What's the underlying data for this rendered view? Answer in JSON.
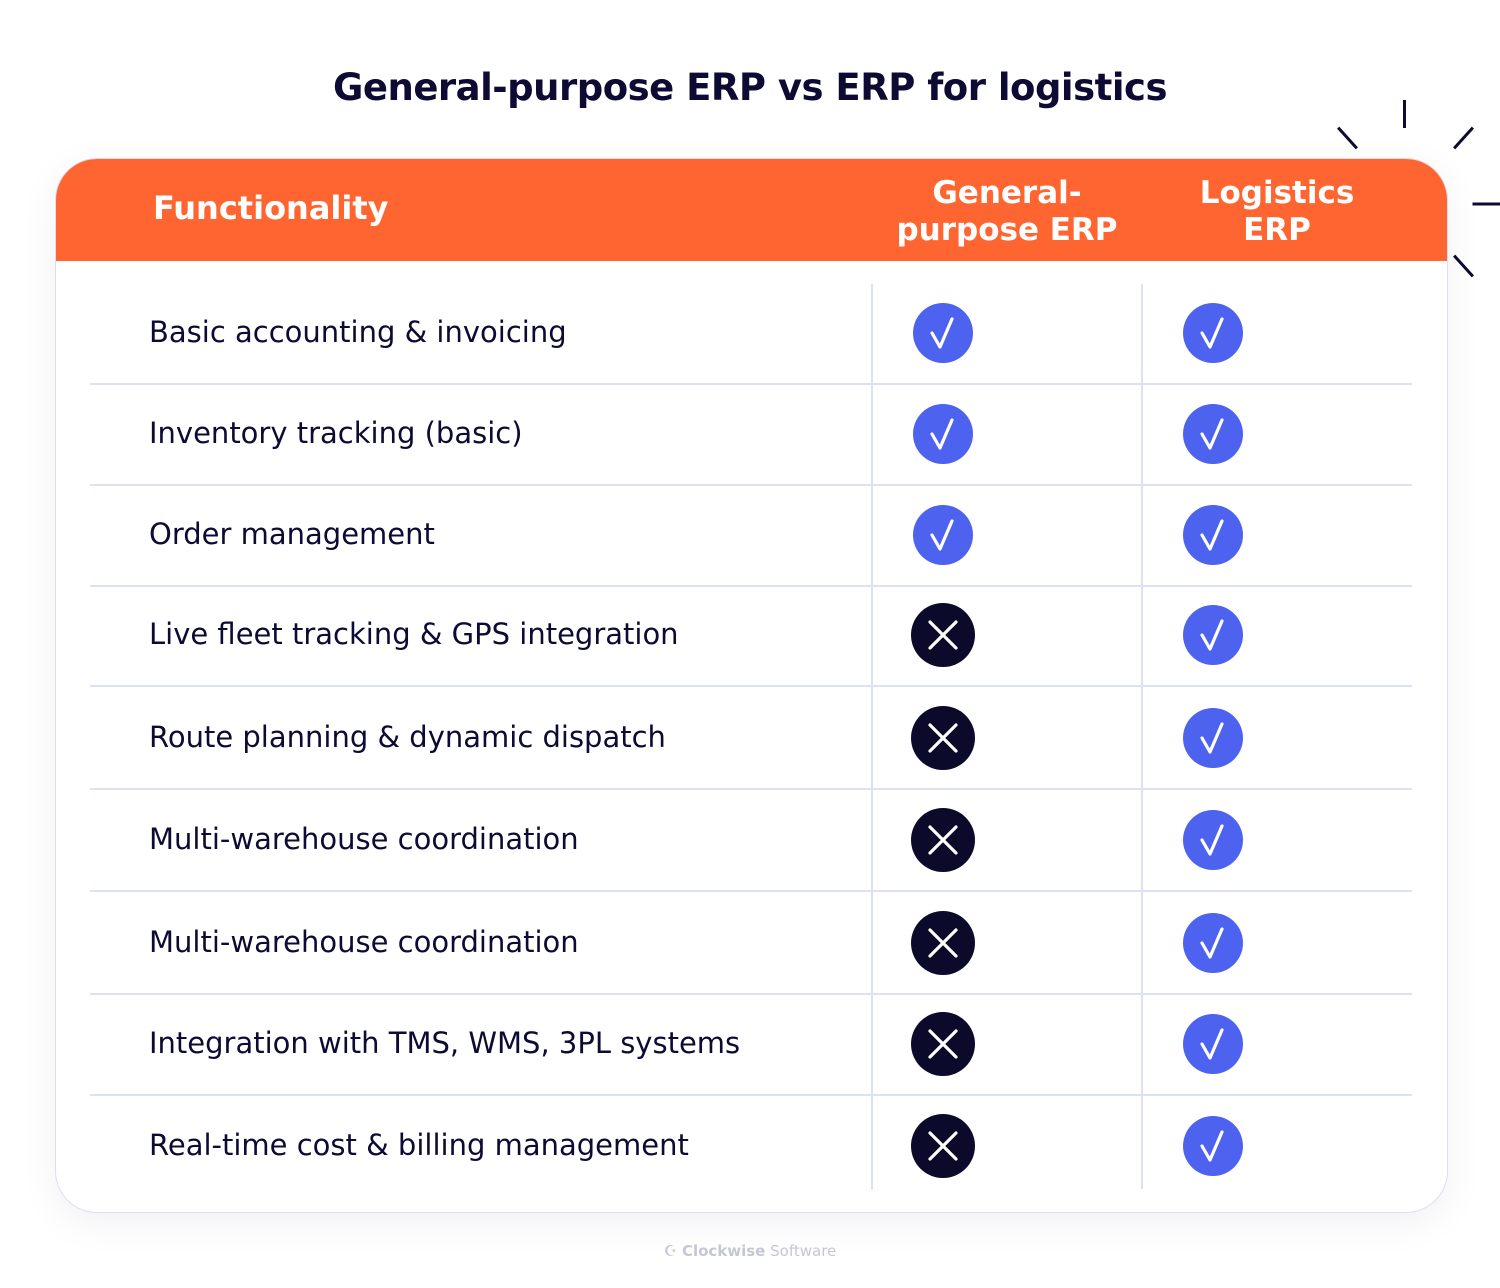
{
  "title": "General-purpose ERP vs ERP for logistics",
  "colors": {
    "header": "#ff6531",
    "check": "#4d63ef",
    "cross": "#0b0a2b",
    "text": "#0d0a33",
    "divider": "#dde1f5"
  },
  "header": {
    "functionality": "Functionality",
    "general_line1": "General-",
    "general_line2": "purpose ERP",
    "logistics_line1": "Logistics",
    "logistics_line2": "ERP"
  },
  "rows": [
    {
      "label": "Basic accounting & invoicing",
      "general": "check-icon",
      "logistics": "check-icon"
    },
    {
      "label": "Inventory tracking (basic)",
      "general": "check-icon",
      "logistics": "check-icon"
    },
    {
      "label": "Order management",
      "general": "check-icon",
      "logistics": "check-icon"
    },
    {
      "label": "Live fleet tracking & GPS integration",
      "general": "cross-icon",
      "logistics": "check-icon"
    },
    {
      "label": "Route planning & dynamic dispatch",
      "general": "cross-icon",
      "logistics": "check-icon"
    },
    {
      "label": "Multi-warehouse coordination",
      "general": "cross-icon",
      "logistics": "check-icon"
    },
    {
      "label": "Multi-warehouse coordination",
      "general": "cross-icon",
      "logistics": "check-icon"
    },
    {
      "label": "Integration with TMS, WMS, 3PL systems",
      "general": "cross-icon",
      "logistics": "check-icon"
    },
    {
      "label": "Real-time cost & billing management",
      "general": "cross-icon",
      "logistics": "check-icon"
    }
  ],
  "footer": {
    "brand_bold": "Clockwise",
    "brand_light": "Software"
  }
}
